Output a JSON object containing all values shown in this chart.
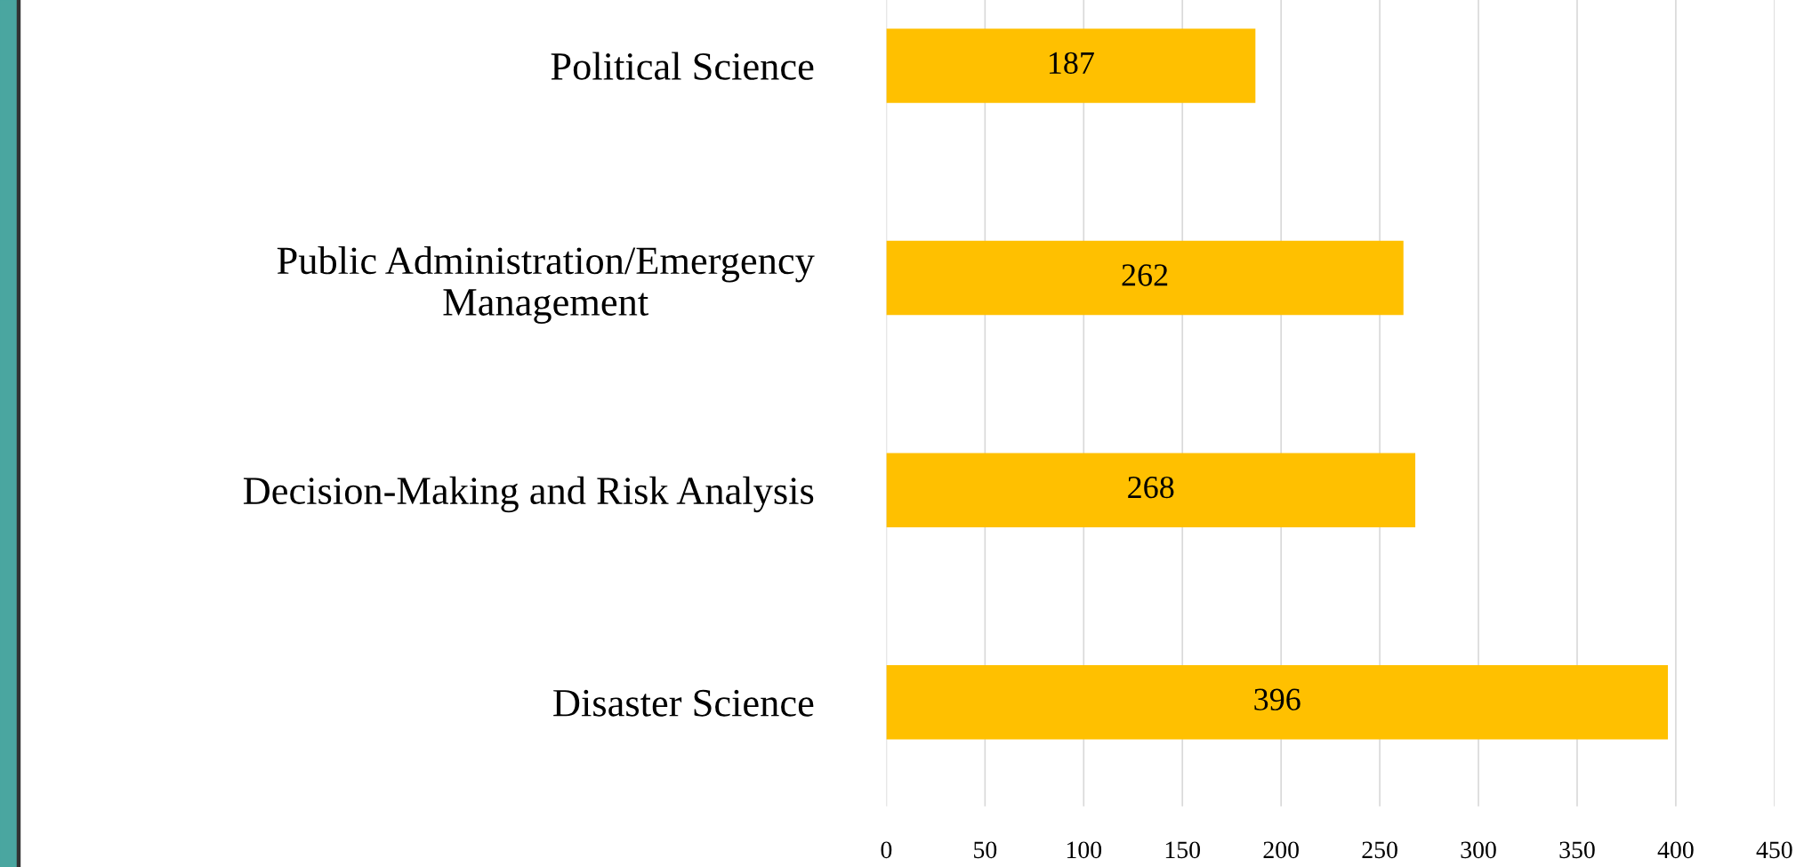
{
  "chart_data": {
    "type": "bar",
    "orientation": "horizontal",
    "categories": [
      "Political Science",
      "Public Administration/Emergency\nManagement",
      "Decision-Making and Risk Analysis",
      "Disaster Science"
    ],
    "values": [
      187,
      262,
      268,
      396
    ],
    "color": "#ffc000",
    "xlim": [
      0,
      450
    ],
    "xticks": [
      0,
      50,
      100,
      150,
      200,
      250,
      300,
      350,
      400,
      450
    ],
    "grid": "x",
    "data_labels": true
  }
}
